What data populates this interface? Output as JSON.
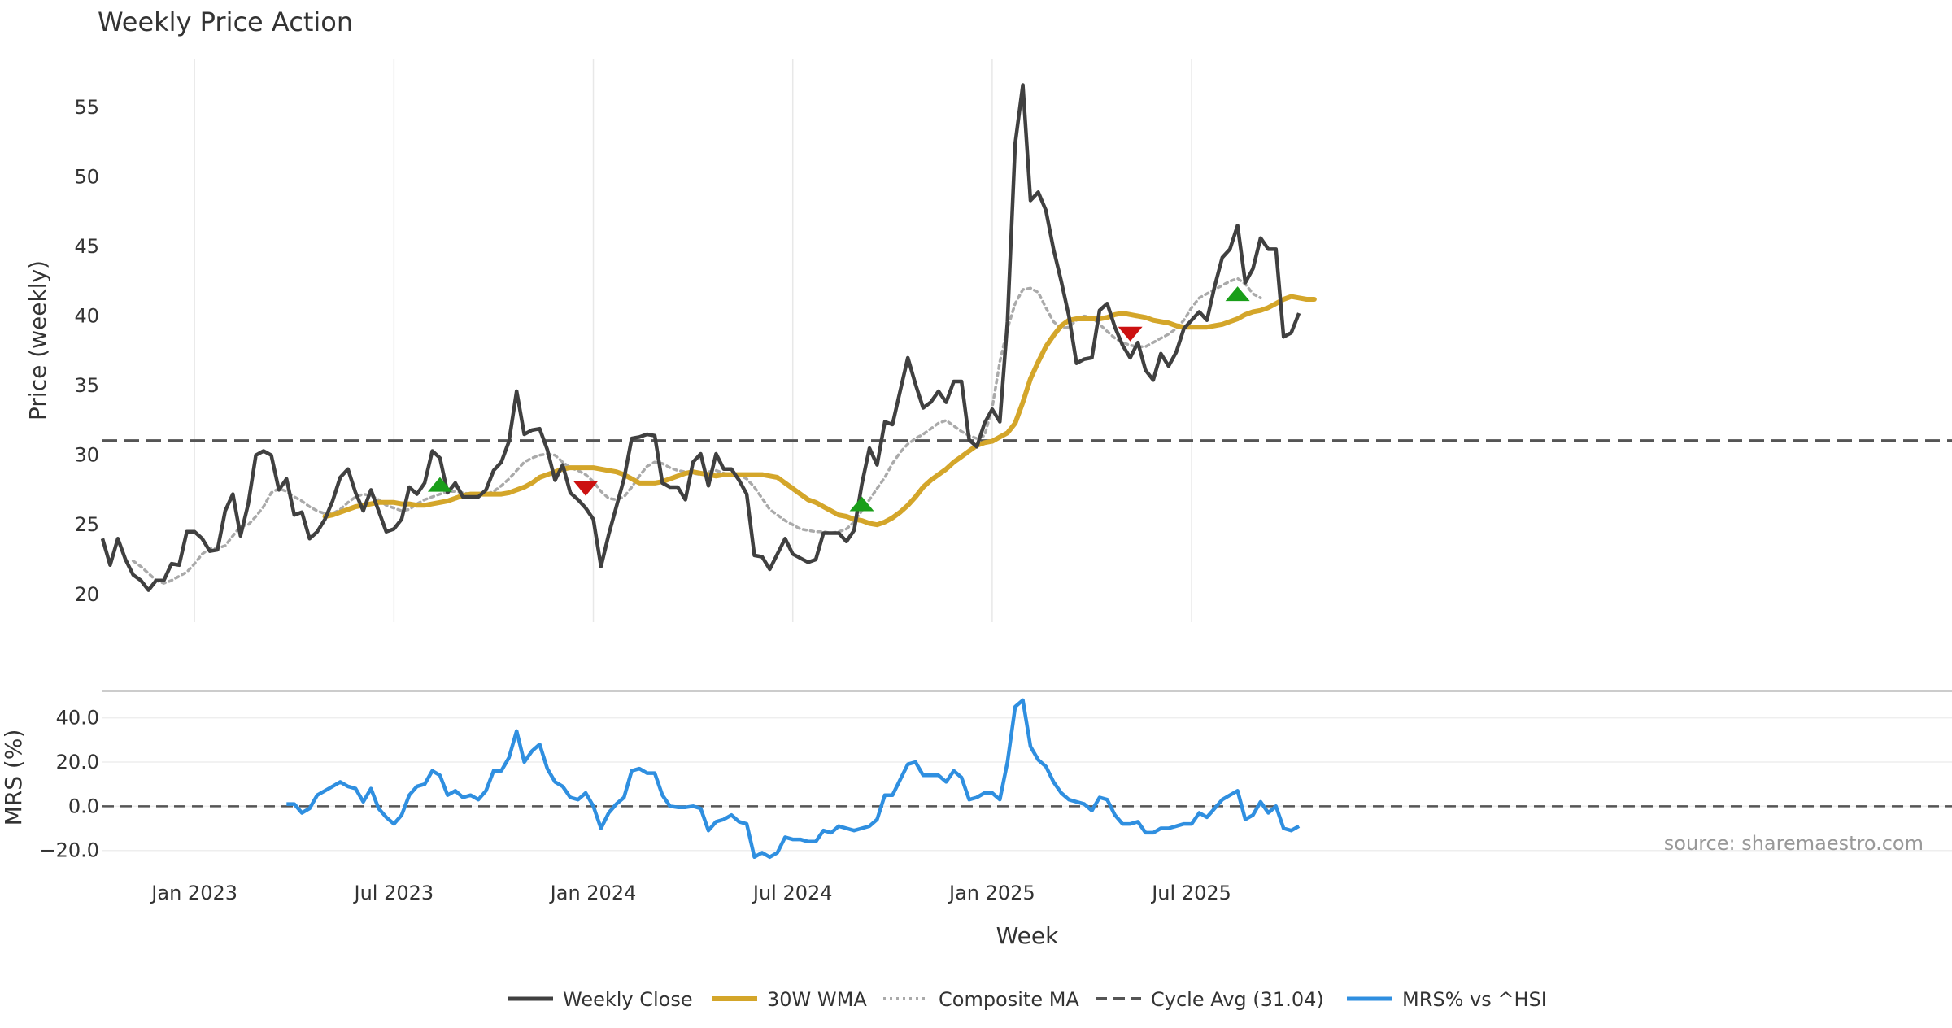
{
  "title": "Weekly Price Action",
  "source_note": "source: sharemaestro.com",
  "colors": {
    "close": "#404040",
    "wma": "#d4a62a",
    "composite": "#aaaaaa",
    "cycle": "#555555",
    "mrs": "#2f8fe0",
    "buy": "#1a9e1a",
    "sell": "#cc1111",
    "grid": "#e8e8e8"
  },
  "chart_data": [
    {
      "type": "line",
      "panel": "price",
      "xlabel": "",
      "ylabel": "Price (weekly)",
      "ylim": [
        18,
        58.5
      ],
      "yticks": [
        20,
        25,
        30,
        35,
        40,
        45,
        50,
        55
      ],
      "x_tick_labels": [
        "Jan 2023",
        "Jul 2023",
        "Jan 2024",
        "Jul 2024",
        "Jan 2025",
        "Jul 2025"
      ],
      "grid": "vertical",
      "x_start_week_index": 0,
      "series": [
        {
          "name": "Weekly Close",
          "style": "solid",
          "values": [
            24.0,
            22.1,
            24.0,
            22.5,
            21.4,
            21.0,
            20.3,
            21.0,
            21.0,
            22.2,
            22.1,
            24.5,
            24.5,
            24.0,
            23.1,
            23.2,
            26.0,
            27.2,
            24.2,
            26.5,
            30.0,
            30.3,
            30.0,
            27.5,
            28.3,
            25.7,
            25.9,
            24.0,
            24.5,
            25.4,
            26.7,
            28.4,
            29.0,
            27.3,
            26.0,
            27.5,
            26.0,
            24.5,
            24.7,
            25.4,
            27.7,
            27.2,
            28.0,
            30.3,
            29.8,
            27.3,
            28.0,
            27.0,
            27.0,
            27.0,
            27.5,
            28.9,
            29.5,
            31.0,
            34.6,
            31.5,
            31.8,
            31.9,
            30.4,
            28.2,
            29.3,
            27.3,
            26.8,
            26.2,
            25.4,
            22.0,
            24.3,
            26.3,
            28.3,
            31.2,
            31.3,
            31.5,
            31.4,
            28.0,
            27.7,
            27.7,
            26.8,
            29.5,
            30.1,
            27.8,
            30.1,
            29.0,
            29.0,
            28.2,
            27.2,
            22.8,
            22.7,
            21.8,
            22.9,
            24.0,
            22.9,
            22.6,
            22.3,
            22.5,
            24.4,
            24.4,
            24.4,
            23.8,
            24.6,
            27.9,
            30.5,
            29.3,
            32.4,
            32.2,
            34.6,
            37.0,
            35.1,
            33.4,
            33.8,
            34.6,
            33.8,
            35.3,
            35.3,
            31.1,
            30.6,
            32.3,
            33.3,
            32.4,
            39.6,
            52.4,
            56.6,
            48.3,
            48.9,
            47.6,
            44.8,
            42.5,
            40.0,
            36.6,
            36.9,
            37.0,
            40.4,
            40.9,
            39.2,
            37.9,
            37.0,
            38.1,
            36.1,
            35.4,
            37.3,
            36.4,
            37.4,
            39.1,
            39.7,
            40.3,
            39.7,
            42.1,
            44.2,
            44.8,
            46.5,
            42.4,
            43.4,
            45.6,
            44.8,
            44.8,
            38.5,
            38.8,
            40.2
          ]
        },
        {
          "name": "30W WMA",
          "style": "solid-thick",
          "start_index": 29,
          "values": [
            25.6,
            25.7,
            25.9,
            26.1,
            26.3,
            26.4,
            26.5,
            26.6,
            26.6,
            26.6,
            26.5,
            26.5,
            26.4,
            26.4,
            26.5,
            26.6,
            26.7,
            26.9,
            27.1,
            27.2,
            27.2,
            27.2,
            27.2,
            27.2,
            27.3,
            27.5,
            27.7,
            28.0,
            28.4,
            28.6,
            28.8,
            29.0,
            29.1,
            29.1,
            29.1,
            29.1,
            29.0,
            28.9,
            28.8,
            28.6,
            28.3,
            28.0,
            28.0,
            28.0,
            28.1,
            28.3,
            28.5,
            28.7,
            28.8,
            28.7,
            28.6,
            28.5,
            28.6,
            28.6,
            28.6,
            28.6,
            28.6,
            28.6,
            28.5,
            28.4,
            28.0,
            27.6,
            27.2,
            26.8,
            26.6,
            26.3,
            26.0,
            25.7,
            25.6,
            25.4,
            25.3,
            25.1,
            25.0,
            25.2,
            25.5,
            25.9,
            26.4,
            27.0,
            27.7,
            28.2,
            28.6,
            29.0,
            29.5,
            29.9,
            30.3,
            30.7,
            30.9,
            31.0,
            31.3,
            31.6,
            32.3,
            33.8,
            35.5,
            36.7,
            37.8,
            38.6,
            39.3,
            39.7,
            39.8,
            39.8,
            39.8,
            39.8,
            39.9,
            40.1,
            40.2,
            40.1,
            40.0,
            39.9,
            39.7,
            39.6,
            39.5,
            39.3,
            39.2,
            39.2,
            39.2,
            39.2,
            39.3,
            39.4,
            39.6,
            39.8,
            40.1,
            40.3,
            40.4,
            40.6,
            40.9,
            41.2,
            41.4,
            41.3,
            41.2,
            41.2
          ]
        },
        {
          "name": "Composite MA",
          "style": "dotted",
          "start_index": 4,
          "values": [
            22.4,
            22.0,
            21.5,
            21.0,
            20.8,
            21.0,
            21.3,
            21.6,
            22.2,
            22.9,
            23.3,
            23.3,
            23.5,
            24.2,
            24.9,
            25.0,
            25.6,
            26.3,
            27.3,
            27.6,
            27.4,
            27.0,
            26.7,
            26.3,
            26.0,
            25.8,
            25.8,
            26.1,
            26.6,
            27.0,
            27.2,
            27.1,
            26.8,
            26.4,
            26.2,
            26.0,
            26.1,
            26.5,
            26.8,
            27.0,
            27.2,
            27.4,
            27.4,
            27.3,
            27.2,
            27.2,
            27.2,
            27.4,
            27.8,
            28.3,
            28.9,
            29.5,
            29.8,
            30.0,
            30.1,
            30.0,
            29.5,
            29.1,
            28.9,
            28.6,
            28.1,
            27.4,
            26.9,
            26.8,
            27.0,
            27.7,
            28.5,
            29.2,
            29.5,
            29.4,
            29.1,
            28.9,
            28.8,
            28.7,
            28.6,
            28.8,
            28.9,
            28.7,
            28.6,
            28.6,
            28.3,
            27.7,
            26.9,
            26.1,
            25.7,
            25.3,
            25.0,
            24.7,
            24.6,
            24.5,
            24.5,
            24.4,
            24.5,
            24.7,
            25.2,
            26.0,
            26.8,
            27.6,
            28.4,
            29.4,
            30.2,
            30.8,
            31.2,
            31.5,
            31.9,
            32.3,
            32.5,
            32.1,
            31.7,
            31.4,
            31.2,
            31.4,
            33.4,
            36.7,
            39.1,
            40.9,
            41.9,
            42.0,
            41.7,
            40.6,
            39.6,
            39.1,
            39.2,
            39.7,
            40.0,
            39.9,
            39.4,
            38.9,
            38.4,
            38.1,
            37.9,
            37.8,
            37.8,
            38.1,
            38.4,
            38.7,
            39.1,
            39.7,
            40.6,
            41.3,
            41.6,
            41.9,
            42.2,
            42.5,
            42.7,
            42.3,
            41.6,
            41.3
          ]
        },
        {
          "name": "Cycle Avg (31.04)",
          "style": "dashed",
          "constant": 31.04
        }
      ],
      "signals": [
        {
          "type": "buy",
          "index": 44,
          "value": 27.9
        },
        {
          "type": "sell",
          "index": 63,
          "value": 27.6
        },
        {
          "type": "buy",
          "index": 99,
          "value": 26.5
        },
        {
          "type": "sell",
          "index": 134,
          "value": 38.7
        },
        {
          "type": "buy",
          "index": 148,
          "value": 41.6
        }
      ]
    },
    {
      "type": "line",
      "panel": "mrs",
      "xlabel": "Week",
      "ylabel": "MRS (%)",
      "ylim": [
        -26,
        52
      ],
      "yticks": [
        -20.0,
        0.0,
        20.0,
        40.0
      ],
      "ytick_labels": [
        "−20.0",
        "0.0",
        "20.0",
        "40.0"
      ],
      "series": [
        {
          "name": "MRS% vs ^HSI",
          "style": "solid",
          "start_index": 24,
          "values": [
            1,
            1,
            -3,
            -1,
            5,
            7,
            9,
            11,
            9,
            8,
            2,
            8,
            -1,
            -5,
            -8,
            -4,
            5,
            9,
            10,
            16,
            14,
            5,
            7,
            4,
            5,
            3,
            7,
            16,
            16,
            22,
            34,
            20,
            25,
            28,
            17,
            11,
            9,
            4,
            3,
            6,
            0,
            -10,
            -3,
            1,
            4,
            16,
            17,
            15,
            15,
            5,
            0,
            -0.5,
            -0.5,
            0,
            -1,
            -11,
            -7,
            -6,
            -4,
            -7,
            -8,
            -23,
            -21,
            -23,
            -21,
            -14,
            -15,
            -15,
            -16,
            -16,
            -11,
            -12,
            -9,
            -10,
            -11,
            -10,
            -9,
            -6,
            5,
            5,
            12,
            19,
            20,
            14,
            14,
            14,
            11,
            16,
            13,
            3,
            4,
            6,
            6,
            3,
            20,
            45,
            48,
            27,
            21,
            18,
            11,
            6,
            3,
            2,
            1,
            -2,
            4,
            3,
            -4,
            -8,
            -8,
            -7,
            -12,
            -12,
            -10,
            -10,
            -9,
            -8,
            -8,
            -3,
            -5,
            -1,
            3,
            5,
            7,
            -6,
            -4,
            2,
            -3,
            0,
            -10,
            -11,
            -9
          ]
        },
        {
          "name": "zero",
          "style": "dashed",
          "constant": 0
        }
      ]
    }
  ],
  "legend": {
    "placement": "bottom-center",
    "items": [
      {
        "label": "Weekly Close",
        "style": "solid"
      },
      {
        "label": "30W WMA",
        "style": "solid-thick"
      },
      {
        "label": "Composite MA",
        "style": "dotted"
      },
      {
        "label": "Cycle Avg (31.04)",
        "style": "dashed"
      },
      {
        "label": "MRS% vs ^HSI",
        "style": "solid"
      }
    ]
  }
}
